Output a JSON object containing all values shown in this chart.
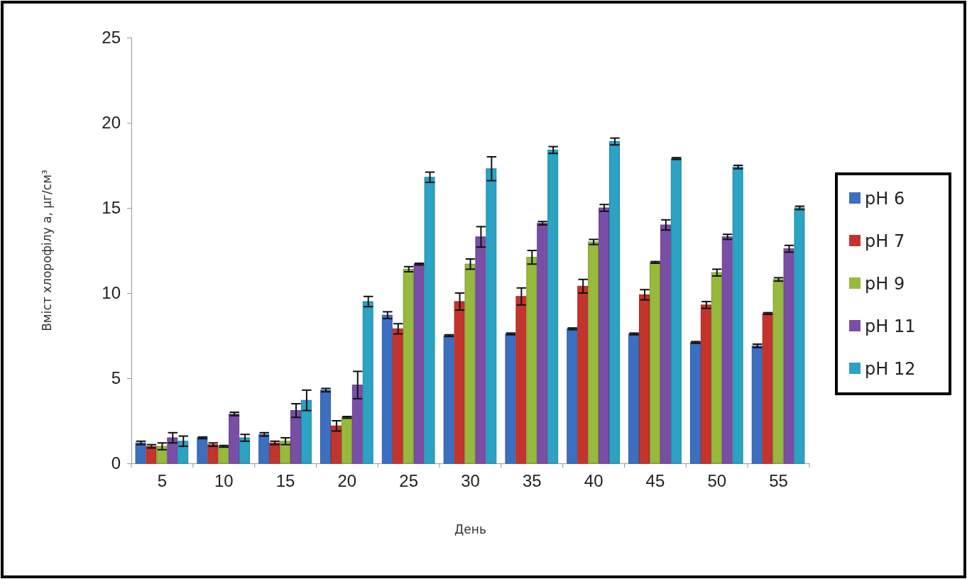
{
  "chart_data": {
    "type": "bar",
    "xlabel": "День",
    "ylabel": "Вміст хлорофілу а, µг/см³",
    "categories": [
      "5",
      "10",
      "15",
      "20",
      "25",
      "30",
      "35",
      "40",
      "45",
      "50",
      "55"
    ],
    "ylim": [
      0,
      25
    ],
    "yticks": [
      0,
      5,
      10,
      15,
      20,
      25
    ],
    "grid": false,
    "legend": "right",
    "series": [
      {
        "name": "pH 6",
        "color": "#3b6fc2",
        "values": [
          1.2,
          1.5,
          1.7,
          4.3,
          8.7,
          7.5,
          7.6,
          7.9,
          7.6,
          7.1,
          6.9
        ],
        "errors": [
          0.1,
          0.05,
          0.1,
          0.1,
          0.2,
          0.05,
          0.05,
          0.05,
          0.05,
          0.05,
          0.1
        ]
      },
      {
        "name": "pH 7",
        "color": "#c4342d",
        "values": [
          1.0,
          1.1,
          1.2,
          2.2,
          7.9,
          9.5,
          9.8,
          10.4,
          9.9,
          9.3,
          8.8
        ],
        "errors": [
          0.1,
          0.1,
          0.1,
          0.3,
          0.3,
          0.5,
          0.5,
          0.4,
          0.3,
          0.2,
          0.05
        ]
      },
      {
        "name": "pH 9",
        "color": "#98ba3c",
        "values": [
          1.0,
          1.0,
          1.3,
          2.7,
          11.4,
          11.7,
          12.1,
          13.0,
          11.8,
          11.2,
          10.8
        ],
        "errors": [
          0.2,
          0.05,
          0.2,
          0.05,
          0.15,
          0.3,
          0.4,
          0.15,
          0.05,
          0.2,
          0.1
        ]
      },
      {
        "name": "pH 11",
        "color": "#7a4ea6",
        "values": [
          1.5,
          2.9,
          3.1,
          4.6,
          11.7,
          13.3,
          14.1,
          15.0,
          14.0,
          13.3,
          12.6
        ],
        "errors": [
          0.3,
          0.1,
          0.4,
          0.8,
          0.05,
          0.6,
          0.1,
          0.2,
          0.3,
          0.15,
          0.2
        ]
      },
      {
        "name": "pH 12",
        "color": "#2aa3c4",
        "values": [
          1.3,
          1.5,
          3.7,
          9.5,
          16.8,
          17.3,
          18.4,
          18.9,
          17.9,
          17.4,
          15.0
        ],
        "errors": [
          0.3,
          0.2,
          0.6,
          0.3,
          0.3,
          0.7,
          0.2,
          0.2,
          0.05,
          0.1,
          0.1
        ]
      }
    ]
  }
}
